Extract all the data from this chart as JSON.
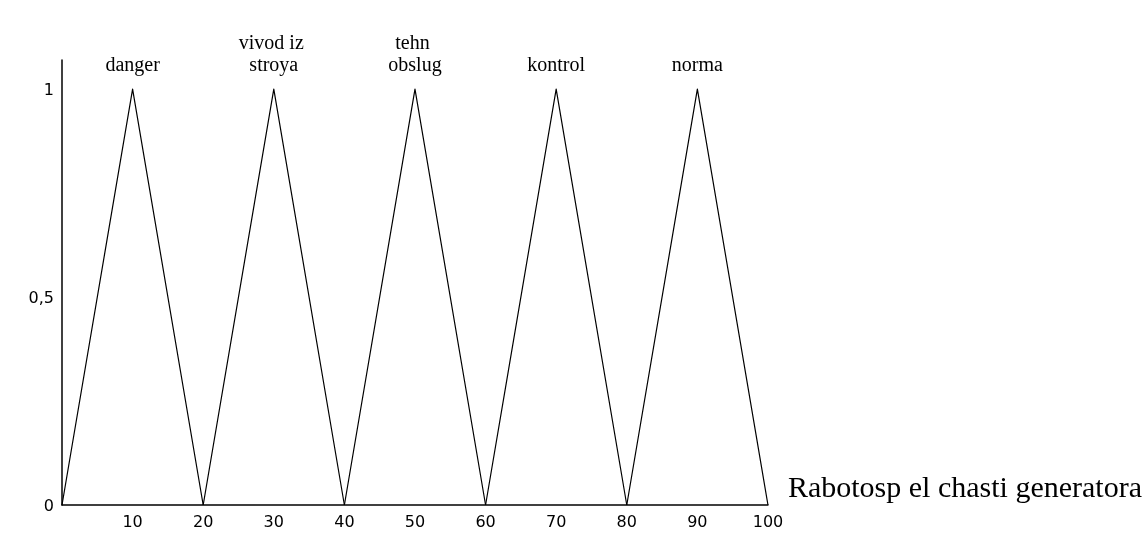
{
  "chart_data": {
    "type": "line",
    "xlabel": "Rabotosp el chasti generatora",
    "xlim": [
      0,
      100
    ],
    "xticks": [
      10,
      20,
      30,
      40,
      50,
      60,
      70,
      80,
      90,
      100
    ],
    "ylim": [
      0,
      1.07
    ],
    "yticks": [
      0,
      {
        "value": 0.5,
        "label": "0,5"
      },
      1
    ],
    "grid": false,
    "legend": false,
    "marker": "none",
    "line_style": "solid",
    "series": [
      {
        "name": "danger",
        "color": "#000000",
        "x": [
          0,
          10,
          20
        ],
        "values": [
          0,
          1,
          0
        ]
      },
      {
        "name": "vivod iz stroya",
        "color": "#000000",
        "x": [
          20,
          30,
          40
        ],
        "values": [
          0,
          1,
          0
        ]
      },
      {
        "name": "tehn obslug",
        "color": "#000000",
        "x": [
          40,
          50,
          60
        ],
        "values": [
          0,
          1,
          0
        ]
      },
      {
        "name": "kontrol",
        "color": "#000000",
        "x": [
          60,
          70,
          80
        ],
        "values": [
          0,
          1,
          0
        ]
      },
      {
        "name": "norma",
        "color": "#000000",
        "x": [
          80,
          90,
          100
        ],
        "values": [
          0,
          1,
          0
        ]
      }
    ]
  }
}
